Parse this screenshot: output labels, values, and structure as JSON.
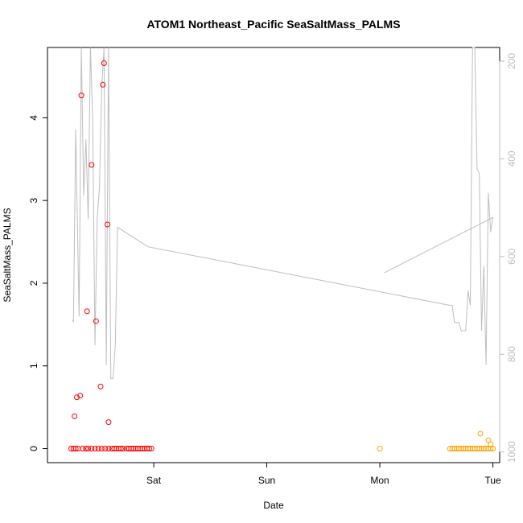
{
  "chart_data": {
    "type": "scatter",
    "title": "ATOM1 Northeast_Pacific SeaSaltMass_PALMS",
    "xlabel": "Date",
    "ylabel": "SeaSaltMass_PALMS",
    "x_ticks": [
      "Sat",
      "Sun",
      "Mon",
      "Tue"
    ],
    "y_ticks": [
      "0",
      "1",
      "2",
      "3",
      "4"
    ],
    "y2_ticks": [
      "200",
      "400",
      "600",
      "800",
      "1000"
    ],
    "ylim": [
      -0.17,
      4.85
    ],
    "y2lim": [
      1022,
      172
    ],
    "xlim_days": [
      -0.94,
      3.06
    ],
    "right_axis_color": "#bebebe",
    "series": [
      {
        "color": "#ff0000",
        "marker": "open-circle",
        "points": [
          [
            -0.73,
            0.0
          ],
          [
            -0.71,
            0.0
          ],
          [
            -0.69,
            0.0
          ],
          [
            -0.67,
            0.0
          ],
          [
            -0.63,
            0.0
          ],
          [
            -0.6,
            0.0
          ],
          [
            -0.58,
            0.0
          ],
          [
            -0.55,
            0.0
          ],
          [
            -0.52,
            0.0
          ],
          [
            -0.49,
            0.0
          ],
          [
            -0.46,
            0.0
          ],
          [
            -0.43,
            0.0
          ],
          [
            -0.4,
            0.0
          ],
          [
            -0.37,
            0.0
          ],
          [
            -0.35,
            0.0
          ],
          [
            -0.33,
            0.0
          ],
          [
            -0.31,
            0.0
          ],
          [
            -0.29,
            0.0
          ],
          [
            -0.27,
            0.0
          ],
          [
            -0.24,
            0.0
          ],
          [
            -0.22,
            0.0
          ],
          [
            -0.2,
            0.0
          ],
          [
            -0.18,
            0.0
          ],
          [
            -0.16,
            0.0
          ],
          [
            -0.14,
            0.0
          ],
          [
            -0.12,
            0.0
          ],
          [
            -0.1,
            0.0
          ],
          [
            -0.08,
            0.0
          ],
          [
            -0.06,
            0.0
          ],
          [
            -0.04,
            0.0
          ],
          [
            -0.02,
            0.0
          ],
          [
            -0.7,
            0.39
          ],
          [
            -0.68,
            0.62
          ],
          [
            -0.65,
            0.64
          ],
          [
            -0.64,
            4.27
          ],
          [
            -0.59,
            1.66
          ],
          [
            -0.55,
            3.43
          ],
          [
            -0.51,
            1.54
          ],
          [
            -0.47,
            0.75
          ],
          [
            -0.45,
            4.4
          ],
          [
            -0.44,
            4.66
          ],
          [
            -0.41,
            2.71
          ],
          [
            -0.4,
            0.32
          ]
        ]
      },
      {
        "color": "#ffa500",
        "marker": "open-circle",
        "points": [
          [
            2.0,
            0.0
          ],
          [
            2.62,
            0.0
          ],
          [
            2.64,
            0.0
          ],
          [
            2.66,
            0.0
          ],
          [
            2.68,
            0.0
          ],
          [
            2.7,
            0.0
          ],
          [
            2.72,
            0.0
          ],
          [
            2.74,
            0.0
          ],
          [
            2.76,
            0.0
          ],
          [
            2.78,
            0.0
          ],
          [
            2.8,
            0.0
          ],
          [
            2.82,
            0.0
          ],
          [
            2.84,
            0.0
          ],
          [
            2.86,
            0.0
          ],
          [
            2.88,
            0.0
          ],
          [
            2.9,
            0.0
          ],
          [
            2.92,
            0.0
          ],
          [
            2.94,
            0.0
          ],
          [
            2.96,
            0.0
          ],
          [
            2.98,
            0.0
          ],
          [
            3.0,
            0.0
          ],
          [
            2.89,
            0.18
          ],
          [
            2.96,
            0.1
          ],
          [
            2.98,
            0.05
          ]
        ]
      }
    ],
    "line_series": {
      "color": "#bebebe",
      "axis": "right",
      "points": [
        [
          -0.72,
          730
        ],
        [
          -0.71,
          733
        ],
        [
          -0.69,
          340
        ],
        [
          -0.66,
          723
        ],
        [
          -0.64,
          172
        ],
        [
          -0.62,
          475
        ],
        [
          -0.6,
          360
        ],
        [
          -0.58,
          523
        ],
        [
          -0.56,
          172
        ],
        [
          -0.54,
          320
        ],
        [
          -0.52,
          782
        ],
        [
          -0.5,
          523
        ],
        [
          -0.48,
          460
        ],
        [
          -0.46,
          255
        ],
        [
          -0.44,
          172
        ],
        [
          -0.42,
          822
        ],
        [
          -0.4,
          172
        ],
        [
          -0.38,
          850
        ],
        [
          -0.36,
          850
        ],
        [
          -0.34,
          780
        ],
        [
          -0.32,
          540
        ],
        [
          -0.05,
          580
        ],
        [
          2.62,
          700
        ],
        [
          2.64,
          700
        ],
        [
          2.66,
          735
        ],
        [
          2.7,
          735
        ],
        [
          2.72,
          752
        ],
        [
          2.76,
          752
        ],
        [
          2.78,
          670
        ],
        [
          2.8,
          700
        ],
        [
          2.82,
          172
        ],
        [
          2.84,
          172
        ],
        [
          2.86,
          420
        ],
        [
          2.88,
          430
        ],
        [
          2.9,
          752
        ],
        [
          2.92,
          620
        ],
        [
          2.94,
          822
        ],
        [
          2.96,
          470
        ],
        [
          2.98,
          550
        ],
        [
          3.0,
          520
        ],
        [
          2.04,
          633
        ]
      ]
    }
  }
}
